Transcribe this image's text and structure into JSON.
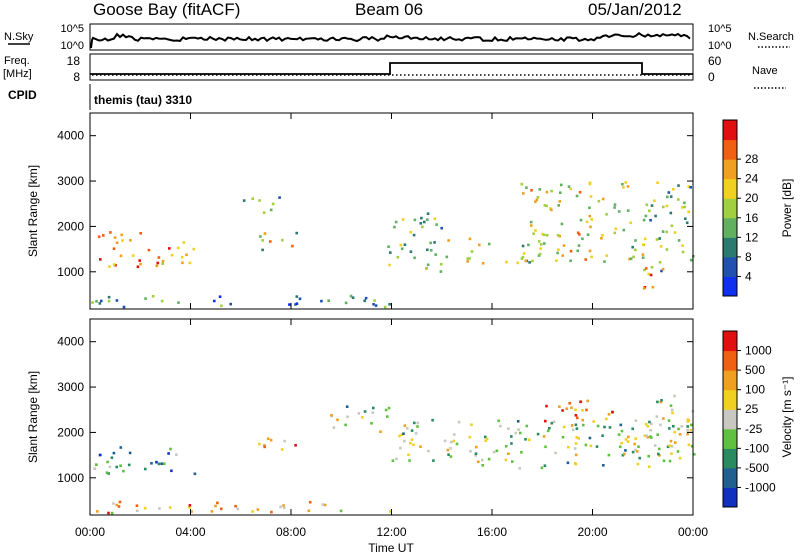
{
  "header": {
    "station": "Goose Bay (fitACF)",
    "beam": "Beam 06",
    "date": "05/Jan/2012"
  },
  "nsky_panel": {
    "left_label": "N.Sky",
    "right_label": "N.Search",
    "left_ticks": [
      "10^5",
      "10^0"
    ],
    "right_ticks": [
      "10^5",
      "10^0"
    ]
  },
  "freq_panel": {
    "left_label_line1": "Freq.",
    "left_label_line2": "[MHz]",
    "right_label": "Nave",
    "left_ticks": [
      "18",
      "8"
    ],
    "right_ticks": [
      "60",
      "0"
    ],
    "cpid_label": "CPID",
    "cpid_value": "themis (tau) 3310"
  },
  "chart_data": [
    {
      "type": "heatmap",
      "title": "",
      "xlabel": "Time UT",
      "ylabel": "Slant Range [km]",
      "xlim": [
        "00:00",
        "24:00"
      ],
      "ylim": [
        180,
        4500
      ],
      "x_ticks": [
        "00:00",
        "04:00",
        "08:00",
        "12:00",
        "16:00",
        "20:00",
        "00:00"
      ],
      "y_ticks": [
        1000,
        2000,
        3000,
        4000
      ],
      "colorbar": {
        "label": "Power [dB]",
        "ticks": [
          "4",
          "8",
          "12",
          "16",
          "20",
          "24",
          "28"
        ],
        "colors": [
          "#1030f0",
          "#2050b0",
          "#2a7a70",
          "#60b060",
          "#a0d040",
          "#f0d020",
          "#f0a020",
          "#f06010",
          "#e01010"
        ],
        "range": [
          0,
          30
        ]
      },
      "features": [
        {
          "t_start": 0.0,
          "t_end": 2.0,
          "r_min": 1100,
          "r_max": 1900,
          "level": 0.8
        },
        {
          "t_start": 1.8,
          "t_end": 4.2,
          "r_min": 1100,
          "r_max": 1700,
          "level": 0.75
        },
        {
          "t_start": 6.0,
          "t_end": 7.5,
          "r_min": 2300,
          "r_max": 2700,
          "level": 0.35
        },
        {
          "t_start": 6.5,
          "t_end": 8.2,
          "r_min": 1500,
          "r_max": 1900,
          "level": 0.55
        },
        {
          "t_start": 0.0,
          "t_end": 12.0,
          "r_min": 250,
          "r_max": 500,
          "level": 0.3
        },
        {
          "t_start": 11.8,
          "t_end": 14.0,
          "r_min": 1000,
          "r_max": 2400,
          "level": 0.45
        },
        {
          "t_start": 14.0,
          "t_end": 22.0,
          "r_min": 1200,
          "r_max": 1800,
          "level": 0.55
        },
        {
          "t_start": 17.0,
          "t_end": 21.5,
          "r_min": 1800,
          "r_max": 3000,
          "level": 0.6
        },
        {
          "t_start": 22.0,
          "t_end": 24.0,
          "r_min": 1000,
          "r_max": 3000,
          "level": 0.4
        },
        {
          "t_start": 22.0,
          "t_end": 23.0,
          "r_min": 600,
          "r_max": 1200,
          "level": 0.85
        }
      ]
    },
    {
      "type": "heatmap",
      "title": "",
      "xlabel": "Time UT",
      "ylabel": "Slant Range [km]",
      "xlim": [
        "00:00",
        "24:00"
      ],
      "ylim": [
        180,
        4500
      ],
      "x_ticks": [
        "00:00",
        "04:00",
        "08:00",
        "12:00",
        "16:00",
        "20:00",
        "00:00"
      ],
      "y_ticks": [
        1000,
        2000,
        3000,
        4000
      ],
      "colorbar": {
        "label": "Velocity [m s⁻¹]",
        "ticks": [
          "1000",
          "500",
          "100",
          "25",
          "-25",
          "-100",
          "-500",
          "-1000"
        ],
        "colors": [
          "#1030c0",
          "#206090",
          "#2a8a60",
          "#60c040",
          "#c8c8c0",
          "#f0d020",
          "#f0a020",
          "#f06010",
          "#e01010"
        ],
        "range": [
          -1000,
          1000
        ]
      },
      "features": [
        {
          "t_start": 0.0,
          "t_end": 4.2,
          "r_min": 1100,
          "r_max": 1700,
          "level": 0.3
        },
        {
          "t_start": 6.5,
          "t_end": 8.2,
          "r_min": 1500,
          "r_max": 1900,
          "level": 0.75
        },
        {
          "t_start": 0.0,
          "t_end": 12.0,
          "r_min": 250,
          "r_max": 500,
          "level": 0.65
        },
        {
          "t_start": 9.5,
          "t_end": 12.0,
          "r_min": 2000,
          "r_max": 2600,
          "level": 0.45
        },
        {
          "t_start": 12.0,
          "t_end": 24.0,
          "r_min": 1200,
          "r_max": 2300,
          "level": 0.45
        },
        {
          "t_start": 18.0,
          "t_end": 21.0,
          "r_min": 2200,
          "r_max": 2800,
          "level": 0.8
        },
        {
          "t_start": 22.0,
          "t_end": 24.0,
          "r_min": 1500,
          "r_max": 3000,
          "level": 0.45
        }
      ]
    }
  ]
}
